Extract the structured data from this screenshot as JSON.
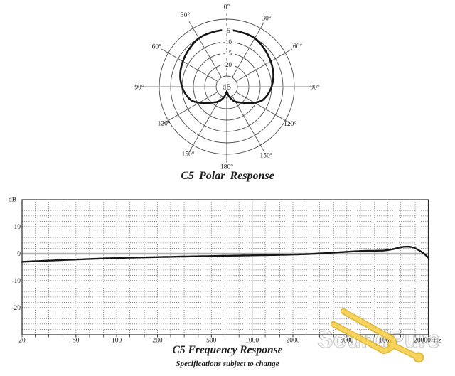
{
  "page": {
    "background": "#ffffff"
  },
  "colors": {
    "curve": "#161616",
    "grid_dot": "#6e6e6e",
    "grid_dot_major": "#3d3d3d",
    "axis_frame": "#2b2b2b",
    "zero_line": "#b0b0b0",
    "ref_line": "#9a9a9a",
    "polar_grid": "#4f4f4f",
    "text": "#1f1f1f"
  },
  "chart_data": [
    {
      "type": "polar",
      "title": "C5 Polar Response",
      "unit": "dB",
      "center_label": "dB",
      "rings_db": [
        0,
        -5,
        -10,
        -15,
        -20,
        -25
      ],
      "ring_labels": [
        {
          "db": -5,
          "text": "-5"
        },
        {
          "db": -10,
          "text": "-10"
        },
        {
          "db": -15,
          "text": "-15"
        },
        {
          "db": -20,
          "text": "-20"
        }
      ],
      "degree_labels": [
        {
          "text": "0°",
          "angle": 0,
          "r": 113
        },
        {
          "text": "30°",
          "angle": -30,
          "r": 117
        },
        {
          "text": "30°",
          "angle": 30,
          "r": 112
        },
        {
          "text": "60°",
          "angle": -60,
          "r": 114
        },
        {
          "text": "60°",
          "angle": 60,
          "r": 115
        },
        {
          "text": "90°",
          "angle": -90,
          "r": 123
        },
        {
          "text": "90°",
          "angle": 90,
          "r": 124
        },
        {
          "text": "120°",
          "angle": -120,
          "r": 102
        },
        {
          "text": "120°",
          "angle": 120,
          "r": 103
        },
        {
          "text": "150°",
          "angle": -150,
          "r": 109
        },
        {
          "text": "150°",
          "angle": 150,
          "r": 111
        },
        {
          "text": "180°",
          "angle": 180,
          "r": 112
        }
      ],
      "pattern_db_by_angle": [
        [
          0,
          -4.7
        ],
        [
          15,
          -4.9
        ],
        [
          30,
          -5.1
        ],
        [
          45,
          -6.3
        ],
        [
          60,
          -7.4
        ],
        [
          75,
          -8.5
        ],
        [
          90,
          -10
        ],
        [
          98,
          -11
        ],
        [
          105,
          -12
        ],
        [
          112,
          -13.2
        ],
        [
          118,
          -15
        ],
        [
          124,
          -16.9
        ],
        [
          130,
          -18.6
        ],
        [
          136,
          -19.9
        ],
        [
          142,
          -21
        ],
        [
          148,
          -21.8
        ],
        [
          155,
          -23
        ],
        [
          163,
          -24.6
        ],
        [
          170,
          -26
        ],
        [
          175,
          -27
        ],
        [
          180,
          -27.5
        ]
      ]
    },
    {
      "type": "line",
      "title": "C5 Frequency Response",
      "footnote": "Specifications subject to change",
      "ylabel": "dB",
      "x_unit": "Hz",
      "xlim": [
        20,
        20000
      ],
      "ylim": [
        -30,
        20
      ],
      "x_scale": "log",
      "x_ticks": [
        20,
        50,
        100,
        200,
        500,
        1000,
        2000,
        5000,
        10000,
        20000
      ],
      "y_ticks": [
        10,
        0,
        -10,
        -20
      ],
      "grid_minor_hz": [
        25,
        31.5,
        40,
        50,
        63,
        80,
        100,
        125,
        160,
        200,
        250,
        315,
        400,
        500,
        630,
        800,
        1250,
        1600,
        2000,
        2500,
        3150,
        4000,
        5000,
        6300,
        8000,
        10000,
        12500,
        16000
      ],
      "solid_ref_hz": 1000,
      "grid_step_db": 2,
      "response_db_by_hz": [
        [
          20,
          -3.0
        ],
        [
          30,
          -2.6
        ],
        [
          50,
          -2.15
        ],
        [
          80,
          -1.75
        ],
        [
          120,
          -1.5
        ],
        [
          200,
          -1.25
        ],
        [
          350,
          -1.0
        ],
        [
          600,
          -0.8
        ],
        [
          1000,
          -0.6
        ],
        [
          1500,
          -0.45
        ],
        [
          2500,
          -0.15
        ],
        [
          4000,
          0.4
        ],
        [
          5000,
          0.7
        ],
        [
          6500,
          1.0
        ],
        [
          8000,
          1.1
        ],
        [
          9500,
          1.2
        ],
        [
          11000,
          1.7
        ],
        [
          12500,
          2.4
        ],
        [
          14000,
          2.6
        ],
        [
          15500,
          2.3
        ],
        [
          17000,
          1.3
        ],
        [
          18500,
          0.1
        ],
        [
          19500,
          -0.9
        ],
        [
          20000,
          -1.5
        ]
      ]
    }
  ],
  "watermark": {
    "text": "SoundPure",
    "letter_fill": "#f7f7f7",
    "letter_outline": "#c6c6c6",
    "fork_fill": "#F6D45C",
    "fork_outline": "#DFB83E"
  }
}
